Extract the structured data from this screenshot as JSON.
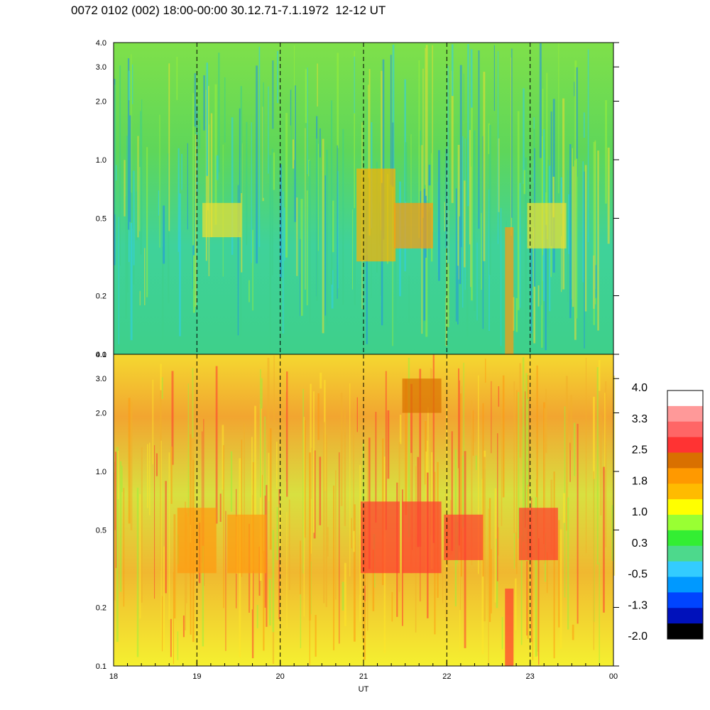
{
  "header": {
    "title": "0072 0102 (002) 18:00-00:00 30.12.71-7.1.1972  12-12 UT"
  },
  "colors": {
    "panel_background_top": "#52e07a",
    "panel_background_bottom": "#f0e040",
    "dashed_marker": "#000000"
  },
  "chart_data": [
    {
      "type": "heatmap",
      "panel": "top",
      "xlabel": "",
      "ylabel": "",
      "x_range": [
        18,
        24
      ],
      "y_range": [
        0.1,
        4.0
      ],
      "y_scale": "log",
      "y_ticks": [
        "0.1",
        "0.2",
        "0.5",
        "1.0",
        "2.0",
        "3.0",
        "4.0"
      ],
      "y_tick_values": [
        0.1,
        0.2,
        0.5,
        1.0,
        2.0,
        3.0,
        4.0
      ],
      "dashed_hours": [
        19,
        20,
        21,
        22,
        23
      ]
    },
    {
      "type": "heatmap",
      "panel": "bottom",
      "xlabel": "UT",
      "ylabel": "",
      "x_range": [
        18,
        24
      ],
      "x_ticks": [
        "18",
        "19",
        "20",
        "21",
        "22",
        "23",
        "00"
      ],
      "x_tick_values": [
        18,
        19,
        20,
        21,
        22,
        23,
        24
      ],
      "y_range": [
        0.1,
        4.0
      ],
      "y_scale": "log",
      "y_ticks": [
        "0.1",
        "0.2",
        "0.5",
        "1.0",
        "2.0",
        "3.0",
        "4.0"
      ],
      "y_tick_values": [
        0.1,
        0.2,
        0.5,
        1.0,
        2.0,
        3.0,
        4.0
      ],
      "dashed_hours": [
        19,
        20,
        21,
        22,
        23
      ]
    }
  ],
  "colorbar": {
    "labels": [
      "4.0",
      "3.3",
      "2.5",
      "1.8",
      "1.0",
      "0.3",
      "-0.5",
      "-1.3",
      "-2.0"
    ],
    "colors": [
      "#ffffff",
      "#ff9999",
      "#ff6666",
      "#ff3333",
      "#d97000",
      "#ff9900",
      "#ffbb00",
      "#ffff00",
      "#99ff33",
      "#33ee33",
      "#4dd98c",
      "#33ccff",
      "#0099ff",
      "#0044ff",
      "#0011bb",
      "#000000"
    ]
  }
}
